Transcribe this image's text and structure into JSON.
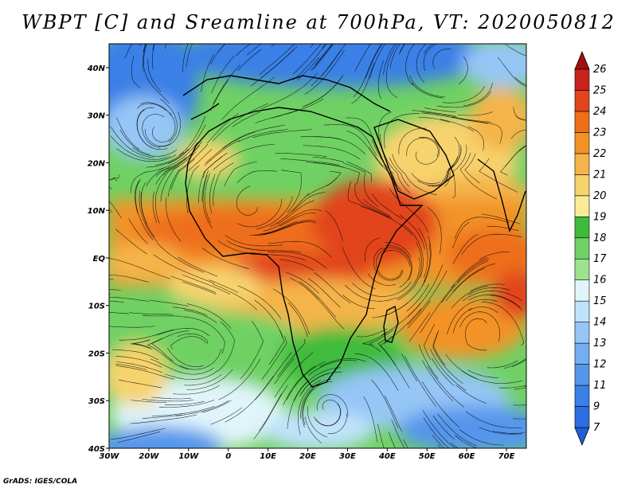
{
  "title": "WBPT [C] and Sreamline at 700hPa, VT: 2020050812",
  "credit": "GrADS: IGES/COLA",
  "map": {
    "lon_range": [
      -30,
      75
    ],
    "lat_range": [
      -40,
      45
    ],
    "lon_labels": [
      "30W",
      "20W",
      "10W",
      "0",
      "10E",
      "20E",
      "30E",
      "40E",
      "50E",
      "60E",
      "70E"
    ],
    "lat_labels": [
      "40S",
      "30S",
      "20S",
      "10S",
      "EQ",
      "10N",
      "20N",
      "30N",
      "40N"
    ]
  },
  "colorbar": {
    "levels": [
      "7",
      "9",
      "11",
      "12",
      "13",
      "14",
      "15",
      "16",
      "17",
      "18",
      "19",
      "20",
      "21",
      "22",
      "23",
      "24",
      "25",
      "26"
    ],
    "colors": [
      "#1f5fd6",
      "#2b6fe0",
      "#3a80e6",
      "#5596ec",
      "#73aef2",
      "#95c6f6",
      "#bfe2fb",
      "#e0f5fa",
      "#9de28e",
      "#6fd163",
      "#3fbb3c",
      "#f8ec96",
      "#f7d36e",
      "#f5b44a",
      "#f39326",
      "#ee6e1a",
      "#e2451a",
      "#c8231c",
      "#a30f0f"
    ]
  },
  "colors": {
    "land_outline": "#000000",
    "streamline": "#000000"
  }
}
